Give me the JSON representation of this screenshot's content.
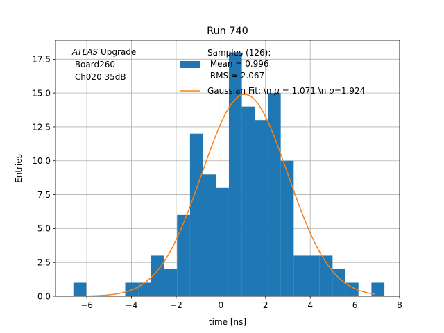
{
  "chart_data": {
    "type": "bar",
    "title": "Run 740",
    "xlabel": "time [ns]",
    "ylabel": "Entries",
    "xlim": [
      -7.4,
      8.0
    ],
    "ylim": [
      0,
      18.9
    ],
    "xticks": [
      -6,
      -4,
      -2,
      0,
      2,
      4,
      6,
      8
    ],
    "xtick_labels": [
      "−6",
      "−4",
      "−2",
      "0",
      "2",
      "4",
      "6",
      "8"
    ],
    "yticks": [
      0,
      2.5,
      5,
      7.5,
      10,
      12.5,
      15,
      17.5
    ],
    "ytick_labels": [
      "0.0",
      "2.5",
      "5.0",
      "7.5",
      "10.0",
      "12.5",
      "15.0",
      "17.5"
    ],
    "grid": true,
    "histogram": {
      "bin_edges": [
        -6.6,
        -6.02,
        -5.44,
        -4.86,
        -4.28,
        -3.7,
        -3.12,
        -2.54,
        -1.96,
        -1.38,
        -0.8,
        -0.22,
        0.36,
        0.94,
        1.52,
        2.1,
        2.68,
        3.26,
        3.84,
        4.42,
        5.0,
        5.58,
        6.16,
        6.74,
        7.32
      ],
      "counts": [
        1,
        0,
        0,
        0,
        1,
        1,
        3,
        2,
        6,
        12,
        9,
        8,
        18,
        14,
        13,
        15,
        10,
        3,
        3,
        3,
        2,
        1,
        0,
        1
      ],
      "color": "#1f77b4"
    },
    "gaussian_fit": {
      "amplitude": 14.9,
      "mu": 1.071,
      "sigma": 1.924,
      "x_range": [
        -6.0,
        6.9
      ],
      "color": "#ff7f0e"
    },
    "annotation": {
      "line1_italic": "ATLAS",
      "line1_rest": " Upgrade",
      "line2": " Board260",
      "line3": " Ch020 35dB"
    },
    "legend": {
      "placement": "top-right",
      "hist_label_lines": [
        "Samples (126):",
        " Mean = 0.996",
        " RMS = 2.067"
      ],
      "fit_label_part1": "Gaussian Fit: \\n ",
      "fit_label_mu_symbol": "μ",
      "fit_label_part2": " = 1.071 \\n ",
      "fit_label_sigma_symbol": "σ",
      "fit_label_part3": "=1.924"
    }
  }
}
